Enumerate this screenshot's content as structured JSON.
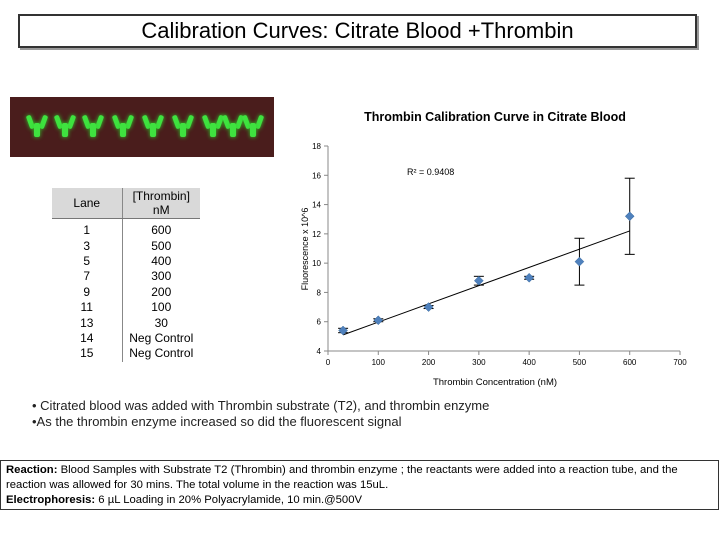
{
  "slide": {
    "title": "Calibration Curves: Citrate Blood +Thrombin"
  },
  "gel": {
    "band_color": "#3fe23f",
    "background_color": "#4a1d1c",
    "band_count": 9
  },
  "lane_table": {
    "headers": [
      "Lane",
      "[Thrombin] nM"
    ],
    "rows": [
      [
        "1",
        "600"
      ],
      [
        "3",
        "500"
      ],
      [
        "5",
        "400"
      ],
      [
        "7",
        "300"
      ],
      [
        "9",
        "200"
      ],
      [
        "11",
        "100"
      ],
      [
        "13",
        "30"
      ],
      [
        "14",
        "Neg Control"
      ],
      [
        "15",
        "Neg Control"
      ]
    ]
  },
  "chart_data": {
    "type": "scatter",
    "title": "Thrombin Calibration Curve in Citrate Blood",
    "xlabel": "Thrombin Concentration (nM)",
    "ylabel": "Fluorescence x 10^6",
    "xlim": [
      0,
      700
    ],
    "ylim": [
      4,
      18
    ],
    "x_ticks": [
      "0",
      "100",
      "200",
      "300",
      "400",
      "500",
      "600",
      "700"
    ],
    "y_ticks": [
      "4",
      "6",
      "8",
      "10",
      "12",
      "14",
      "16",
      "18"
    ],
    "r_squared_label": "R² = 0.9408",
    "marker_color": "#4f81bd",
    "series": [
      {
        "x": [
          30,
          100,
          200,
          300,
          400,
          500,
          600
        ],
        "y": [
          5.4,
          6.1,
          7.0,
          8.8,
          9.0,
          10.1,
          13.2
        ],
        "error": [
          0.15,
          0.1,
          0.1,
          0.3,
          0.1,
          1.6,
          2.6
        ]
      }
    ],
    "trendline": {
      "type": "linear",
      "from": [
        30,
        5.1
      ],
      "to": [
        600,
        12.2
      ]
    }
  },
  "notes": {
    "bullets": [
      "• Citrated blood was added with Thrombin substrate (T2), and thrombin enzyme",
      "•As the thrombin enzyme increased so did the fluorescent signal"
    ]
  },
  "info": {
    "reaction_label": "Reaction:",
    "reaction_text": " Blood Samples with Substrate T2 (Thrombin) and thrombin enzyme ; the reactants were added into a reaction tube, and the reaction was allowed for 30 mins. The total volume in the reaction was 15uL.",
    "electro_label": "Electrophoresis:",
    "electro_text": " 6 µL Loading in 20% Polyacrylamide, 10 min.@500V"
  }
}
